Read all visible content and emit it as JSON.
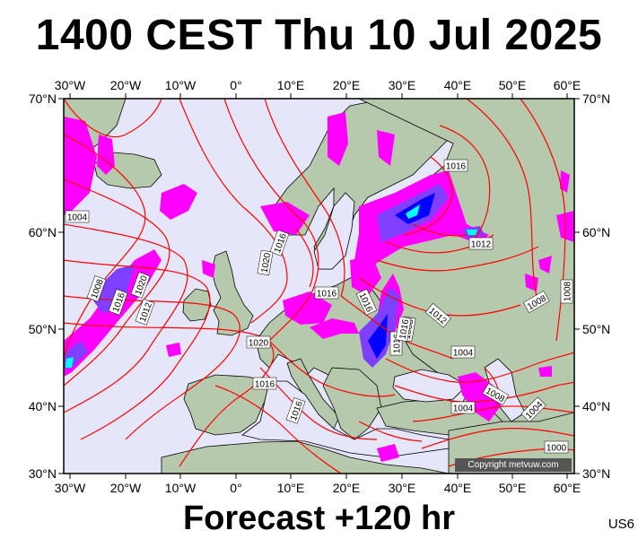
{
  "title": "1400 CEST Thu 10 Jul 2025",
  "footer": "Forecast +120 hr",
  "product_code": "US6",
  "copyright": "Copyright metvuw.com",
  "axes": {
    "lon_labels": [
      "30°W",
      "20°W",
      "10°W",
      "0°",
      "10°E",
      "20°E",
      "30°E",
      "40°E",
      "50°E",
      "60°E"
    ],
    "lat_labels": [
      "70°N",
      "60°N",
      "50°N",
      "40°N",
      "30°N"
    ]
  },
  "isobar_labels": [
    "1016",
    "1004",
    "1012",
    "1008",
    "1016",
    "1020",
    "1016",
    "1020",
    "1016",
    "1016",
    "1012",
    "1008",
    "1012",
    "1016",
    "1008",
    "1004",
    "1020",
    "1016",
    "1016",
    "1008",
    "1004",
    "1004",
    "1000",
    "1008",
    "1016"
  ],
  "colors": {
    "sea": "#e6e6fa",
    "land": "#b7c9ad",
    "isobar": "#ff0000",
    "rain_light": "#ff00ff",
    "rain_medium": "#7f3fff",
    "rain_heavy": "#0000ff",
    "rain_extreme": "#00ffff"
  }
}
